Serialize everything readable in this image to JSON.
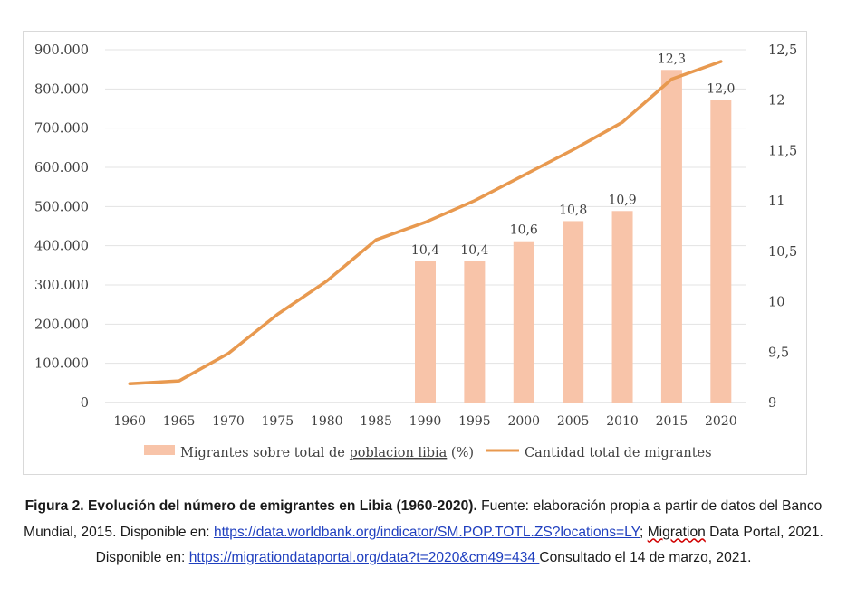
{
  "chart_data": {
    "type": "bar",
    "categories": [
      "1960",
      "1965",
      "1970",
      "1975",
      "1980",
      "1985",
      "1990",
      "1995",
      "2000",
      "2005",
      "2010",
      "2015",
      "2020"
    ],
    "left_axis": {
      "ticks": [
        0,
        100000,
        200000,
        300000,
        400000,
        500000,
        600000,
        700000,
        800000,
        900000
      ],
      "tick_labels": [
        "0",
        "100.000",
        "200.000",
        "300.000",
        "400.000",
        "500.000",
        "600.000",
        "700.000",
        "800.000",
        "900.000"
      ],
      "ylim": [
        0,
        900000
      ]
    },
    "right_axis": {
      "ticks": [
        9,
        9.5,
        10,
        10.5,
        11,
        11.5,
        12,
        12.5
      ],
      "tick_labels": [
        "9",
        "9,5",
        "10",
        "10,5",
        "11",
        "11,5",
        "12",
        "12,5"
      ],
      "ylim": [
        9,
        12.5
      ]
    },
    "series": [
      {
        "name": "Migrantes sobre total de poblacion libia (%)",
        "type": "bar",
        "axis": "right",
        "color": "#f8c4a9",
        "values": [
          null,
          null,
          null,
          null,
          null,
          null,
          10.4,
          10.4,
          10.6,
          10.8,
          10.9,
          12.3,
          12.0
        ],
        "data_labels": [
          "",
          "",
          "",
          "",
          "",
          "",
          "10,4",
          "10,4",
          "10,6",
          "10,8",
          "10,9",
          "12,3",
          "12,0"
        ]
      },
      {
        "name": "Cantidad total de migrantes",
        "type": "line",
        "axis": "left",
        "color": "#e8994f",
        "values": [
          48000,
          55000,
          125000,
          225000,
          310000,
          415000,
          460000,
          515000,
          580000,
          645000,
          715000,
          825000,
          870000
        ]
      }
    ],
    "grid": true,
    "legend_position": "bottom"
  },
  "caption": {
    "bold_title": "Figura 2. Evolución del número de emigrantes en Libia (1960-2020).",
    "text_1": " Fuente: elaboración propia a partir de datos del Banco Mundial, 2015. Disponible en: ",
    "link_1": "https://data.worldbank.org/indicator/SM.POP.TOTL.ZS?locations=LY",
    "text_2": "; ",
    "wavy_word": "Migration",
    "text_3": " Data Portal, 2021. Disponible en: ",
    "link_2": "https://migrationdataportal.org/data?t=2020&cm49=434 ",
    "text_4": "Consultado el 14 de marzo, 2021."
  }
}
